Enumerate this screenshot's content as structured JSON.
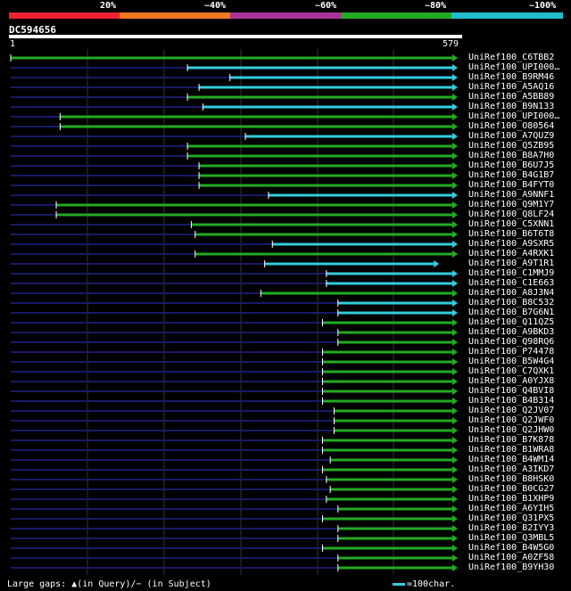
{
  "legend": {
    "labels": [
      "20%",
      "~40%",
      "~60%",
      "~80%",
      "~100%"
    ],
    "colors": [
      "#ee2233",
      "#ee7722",
      "#aa3399",
      "#22aa22",
      "#22bbcc"
    ]
  },
  "query": {
    "id": "DC594656",
    "start": "1",
    "end": "579"
  },
  "footer": {
    "gaps": "Large gaps: ▲(in Query)/− (in Subject)",
    "scale": "=100char."
  },
  "hits": [
    {
      "label": "UniRef100_C6TBB2",
      "start": 1,
      "end": 579,
      "color": "green"
    },
    {
      "label": "UniRef100_UPI000…",
      "start": 230,
      "end": 579,
      "color": "cyan"
    },
    {
      "label": "UniRef100_B9RM46",
      "start": 285,
      "end": 579,
      "color": "cyan"
    },
    {
      "label": "UniRef100_A5AQ16",
      "start": 245,
      "end": 579,
      "color": "cyan"
    },
    {
      "label": "UniRef100_A5BB89",
      "start": 230,
      "end": 579,
      "color": "green"
    },
    {
      "label": "UniRef100_B9N133",
      "start": 250,
      "end": 579,
      "color": "cyan"
    },
    {
      "label": "UniRef100_UPI000…",
      "start": 65,
      "end": 579,
      "color": "green"
    },
    {
      "label": "UniRef100_O80564",
      "start": 65,
      "end": 579,
      "color": "green"
    },
    {
      "label": "UniRef100_A7QUZ9",
      "start": 305,
      "end": 579,
      "color": "cyan"
    },
    {
      "label": "UniRef100_Q5ZB95",
      "start": 230,
      "end": 579,
      "color": "green"
    },
    {
      "label": "UniRef100_B8A7H0",
      "start": 230,
      "end": 579,
      "color": "green"
    },
    {
      "label": "UniRef100_B6U7J5",
      "start": 245,
      "end": 579,
      "color": "green"
    },
    {
      "label": "UniRef100_B4G1B7",
      "start": 245,
      "end": 579,
      "color": "green"
    },
    {
      "label": "UniRef100_B4FYT0",
      "start": 245,
      "end": 579,
      "color": "green"
    },
    {
      "label": "UniRef100_A9NNF1",
      "start": 335,
      "end": 579,
      "color": "cyan"
    },
    {
      "label": "UniRef100_Q9M1Y7",
      "start": 60,
      "end": 579,
      "color": "green"
    },
    {
      "label": "UniRef100_Q8LF24",
      "start": 60,
      "end": 579,
      "color": "green"
    },
    {
      "label": "UniRef100_C5XNN1",
      "start": 235,
      "end": 579,
      "color": "green"
    },
    {
      "label": "UniRef100_B6T6T8",
      "start": 240,
      "end": 579,
      "color": "green"
    },
    {
      "label": "UniRef100_A9SXR5",
      "start": 340,
      "end": 579,
      "color": "cyan"
    },
    {
      "label": "UniRef100_A4RXK1",
      "start": 240,
      "end": 579,
      "color": "green"
    },
    {
      "label": "UniRef100_A9T1R1",
      "start": 330,
      "end": 555,
      "color": "cyan"
    },
    {
      "label": "UniRef100_C1MMJ9",
      "start": 410,
      "end": 579,
      "color": "cyan"
    },
    {
      "label": "UniRef100_C1E663",
      "start": 410,
      "end": 579,
      "color": "cyan"
    },
    {
      "label": "UniRef100_A8J3N4",
      "start": 325,
      "end": 579,
      "color": "green"
    },
    {
      "label": "UniRef100_B8C532",
      "start": 425,
      "end": 579,
      "color": "cyan"
    },
    {
      "label": "UniRef100_B7G6N1",
      "start": 425,
      "end": 579,
      "color": "cyan"
    },
    {
      "label": "UniRef100_Q11QZ5",
      "start": 405,
      "end": 579,
      "color": "green"
    },
    {
      "label": "UniRef100_A9BKD3",
      "start": 425,
      "end": 579,
      "color": "green"
    },
    {
      "label": "UniRef100_Q98RQ6",
      "start": 425,
      "end": 579,
      "color": "green"
    },
    {
      "label": "UniRef100_P74478",
      "start": 405,
      "end": 579,
      "color": "green"
    },
    {
      "label": "UniRef100_B5W4G4",
      "start": 405,
      "end": 579,
      "color": "green"
    },
    {
      "label": "UniRef100_C7QXK1",
      "start": 405,
      "end": 579,
      "color": "green"
    },
    {
      "label": "UniRef100_A0YJX8",
      "start": 405,
      "end": 579,
      "color": "green"
    },
    {
      "label": "UniRef100_Q4BVI8",
      "start": 405,
      "end": 579,
      "color": "green"
    },
    {
      "label": "UniRef100_B4B314",
      "start": 405,
      "end": 579,
      "color": "green"
    },
    {
      "label": "UniRef100_Q2JV07",
      "start": 420,
      "end": 579,
      "color": "green"
    },
    {
      "label": "UniRef100_Q2JWF0",
      "start": 420,
      "end": 579,
      "color": "green"
    },
    {
      "label": "UniRef100_Q2JHW0",
      "start": 420,
      "end": 579,
      "color": "green"
    },
    {
      "label": "UniRef100_B7K878",
      "start": 405,
      "end": 579,
      "color": "green"
    },
    {
      "label": "UniRef100_B1WRA8",
      "start": 405,
      "end": 579,
      "color": "green"
    },
    {
      "label": "UniRef100_B4WM14",
      "start": 415,
      "end": 579,
      "color": "green"
    },
    {
      "label": "UniRef100_A3IKD7",
      "start": 405,
      "end": 579,
      "color": "green"
    },
    {
      "label": "UniRef100_B8HSK0",
      "start": 410,
      "end": 579,
      "color": "green"
    },
    {
      "label": "UniRef100_B0CG27",
      "start": 415,
      "end": 579,
      "color": "green"
    },
    {
      "label": "UniRef100_B1XHP9",
      "start": 410,
      "end": 579,
      "color": "green"
    },
    {
      "label": "UniRef100_A6YIH5",
      "start": 425,
      "end": 579,
      "color": "green"
    },
    {
      "label": "UniRef100_Q31PX5",
      "start": 405,
      "end": 579,
      "color": "green"
    },
    {
      "label": "UniRef100_B2IYY3",
      "start": 425,
      "end": 579,
      "color": "green"
    },
    {
      "label": "UniRef100_Q3MBL5",
      "start": 425,
      "end": 579,
      "color": "green"
    },
    {
      "label": "UniRef100_B4W5G0",
      "start": 405,
      "end": 579,
      "color": "green"
    },
    {
      "label": "UniRef100_A0ZF58",
      "start": 425,
      "end": 579,
      "color": "green"
    },
    {
      "label": "UniRef100_B9YH30",
      "start": 425,
      "end": 579,
      "color": "green"
    }
  ]
}
